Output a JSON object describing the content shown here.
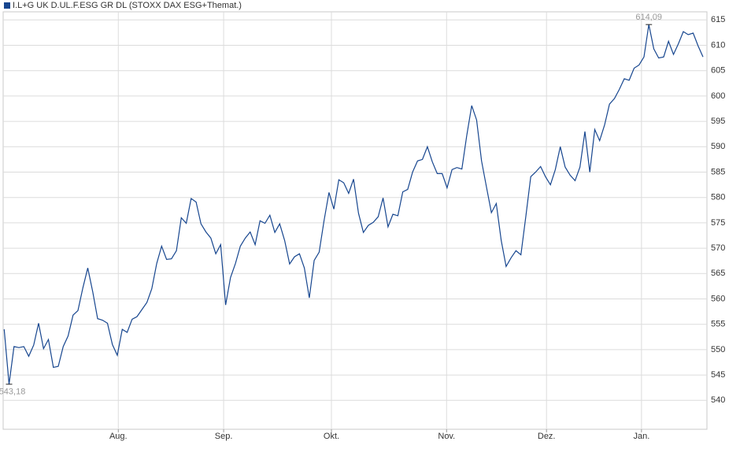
{
  "chart_data": {
    "type": "line",
    "series": [
      {
        "name": "I.L+G UK D.UL.F.ESG GR DL (STOXX DAX ESG+Themat.)",
        "color": "#17468f",
        "values": [
          554.0,
          543.18,
          550.6,
          550.4,
          550.6,
          548.7,
          550.9,
          555.2,
          550.2,
          552.0,
          546.5,
          546.7,
          550.6,
          552.7,
          556.8,
          557.7,
          562.2,
          566.1,
          561.4,
          556.1,
          555.8,
          555.2,
          551.0,
          548.9,
          554.0,
          553.4,
          556.0,
          556.5,
          557.9,
          559.3,
          562.0,
          567.0,
          570.4,
          567.8,
          567.9,
          569.5,
          576.0,
          574.9,
          579.8,
          579.1,
          574.8,
          573.2,
          572.0,
          568.9,
          570.7,
          558.8,
          564.2,
          567.0,
          570.4,
          572.0,
          573.2,
          570.7,
          575.4,
          574.9,
          576.5,
          573.1,
          574.8,
          571.5,
          566.9,
          568.3,
          568.9,
          566.1,
          560.2,
          567.6,
          569.2,
          575.4,
          581.0,
          577.7,
          583.5,
          582.9,
          580.8,
          583.6,
          576.9,
          573.1,
          574.5,
          575.1,
          576.2,
          579.9,
          574.2,
          576.7,
          576.4,
          581.1,
          581.6,
          585.0,
          587.2,
          587.5,
          590.0,
          587.0,
          584.7,
          584.7,
          581.9,
          585.5,
          585.9,
          585.6,
          592.2,
          598.1,
          595.3,
          587.2,
          582.1,
          577.0,
          578.8,
          571.5,
          566.4,
          568.1,
          569.5,
          568.7,
          576.2,
          584.1,
          585.0,
          586.1,
          584.1,
          582.5,
          585.5,
          590.0,
          586.0,
          584.4,
          583.3,
          586.0,
          593.0,
          585.0,
          593.4,
          591.2,
          594.3,
          598.4,
          599.5,
          601.3,
          603.4,
          603.1,
          605.5,
          606.1,
          607.7,
          614.09,
          609.3,
          607.5,
          607.7,
          610.8,
          608.2,
          610.3,
          612.7,
          612.1,
          612.4,
          609.9,
          607.7
        ],
        "value_labels": [
          null,
          "543,18",
          null,
          null,
          null,
          null,
          null,
          null,
          null,
          null,
          null,
          null,
          null,
          null,
          null,
          null,
          null,
          null,
          null,
          null,
          null,
          null,
          null,
          null,
          null,
          null,
          null,
          null,
          null,
          null,
          null,
          null,
          null,
          null,
          null,
          null,
          null,
          null,
          null,
          null,
          null,
          null,
          null,
          null,
          null,
          null,
          null,
          null,
          null,
          null,
          null,
          null,
          null,
          null,
          null,
          null,
          null,
          null,
          null,
          null,
          null,
          null,
          null,
          null,
          null,
          null,
          null,
          null,
          null,
          null,
          null,
          null,
          null,
          null,
          null,
          null,
          null,
          null,
          null,
          null,
          null,
          null,
          null,
          null,
          null,
          null,
          null,
          null,
          null,
          null,
          null,
          null,
          null,
          null,
          null,
          null,
          null,
          null,
          null,
          null,
          null,
          null,
          null,
          null,
          null,
          null,
          null,
          null,
          null,
          null,
          null,
          null,
          null,
          null,
          null,
          null,
          null,
          null,
          null,
          null,
          null,
          null,
          null,
          null,
          null,
          null,
          null,
          null,
          null,
          null,
          null,
          "614,09",
          null,
          null,
          null,
          null,
          null,
          null,
          null,
          null,
          null,
          null,
          null
        ]
      }
    ],
    "xlim": [
      -0.2,
      142.8
    ],
    "xticks": [
      {
        "value": 23.2,
        "label": "Aug."
      },
      {
        "value": 44.6,
        "label": "Sep."
      },
      {
        "value": 66.5,
        "label": "Okt."
      },
      {
        "value": 89.9,
        "label": "Nov."
      },
      {
        "value": 110.2,
        "label": "Dez."
      },
      {
        "value": 129.5,
        "label": "Jan."
      }
    ],
    "ylim": [
      534.3,
      616.6
    ],
    "yticks": [
      540,
      545,
      550,
      555,
      560,
      565,
      570,
      575,
      580,
      585,
      590,
      595,
      600,
      605,
      610,
      615
    ],
    "grid": true
  }
}
